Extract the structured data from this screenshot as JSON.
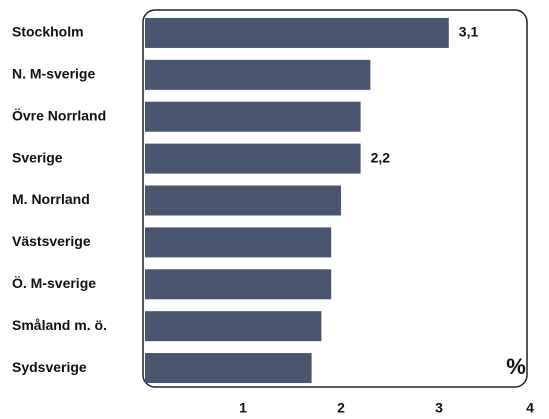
{
  "chart_data": {
    "type": "hbar",
    "categories": [
      "Stockholm",
      "N. M-sverige",
      "Övre Norrland",
      "Sverige",
      "M. Norrland",
      "Västsverige",
      "Ö. M-sverige",
      "Småland m. ö.",
      "Sydsverige"
    ],
    "values": [
      3.1,
      2.3,
      2.2,
      2.2,
      2.0,
      1.9,
      1.9,
      1.8,
      1.7
    ],
    "value_labels": [
      "3,1",
      null,
      null,
      "2,2",
      null,
      null,
      null,
      null,
      null
    ],
    "color": "#4a5670",
    "xlim": [
      0,
      4
    ],
    "xticks": [
      1,
      2,
      3,
      4
    ],
    "unit_label": "%"
  }
}
